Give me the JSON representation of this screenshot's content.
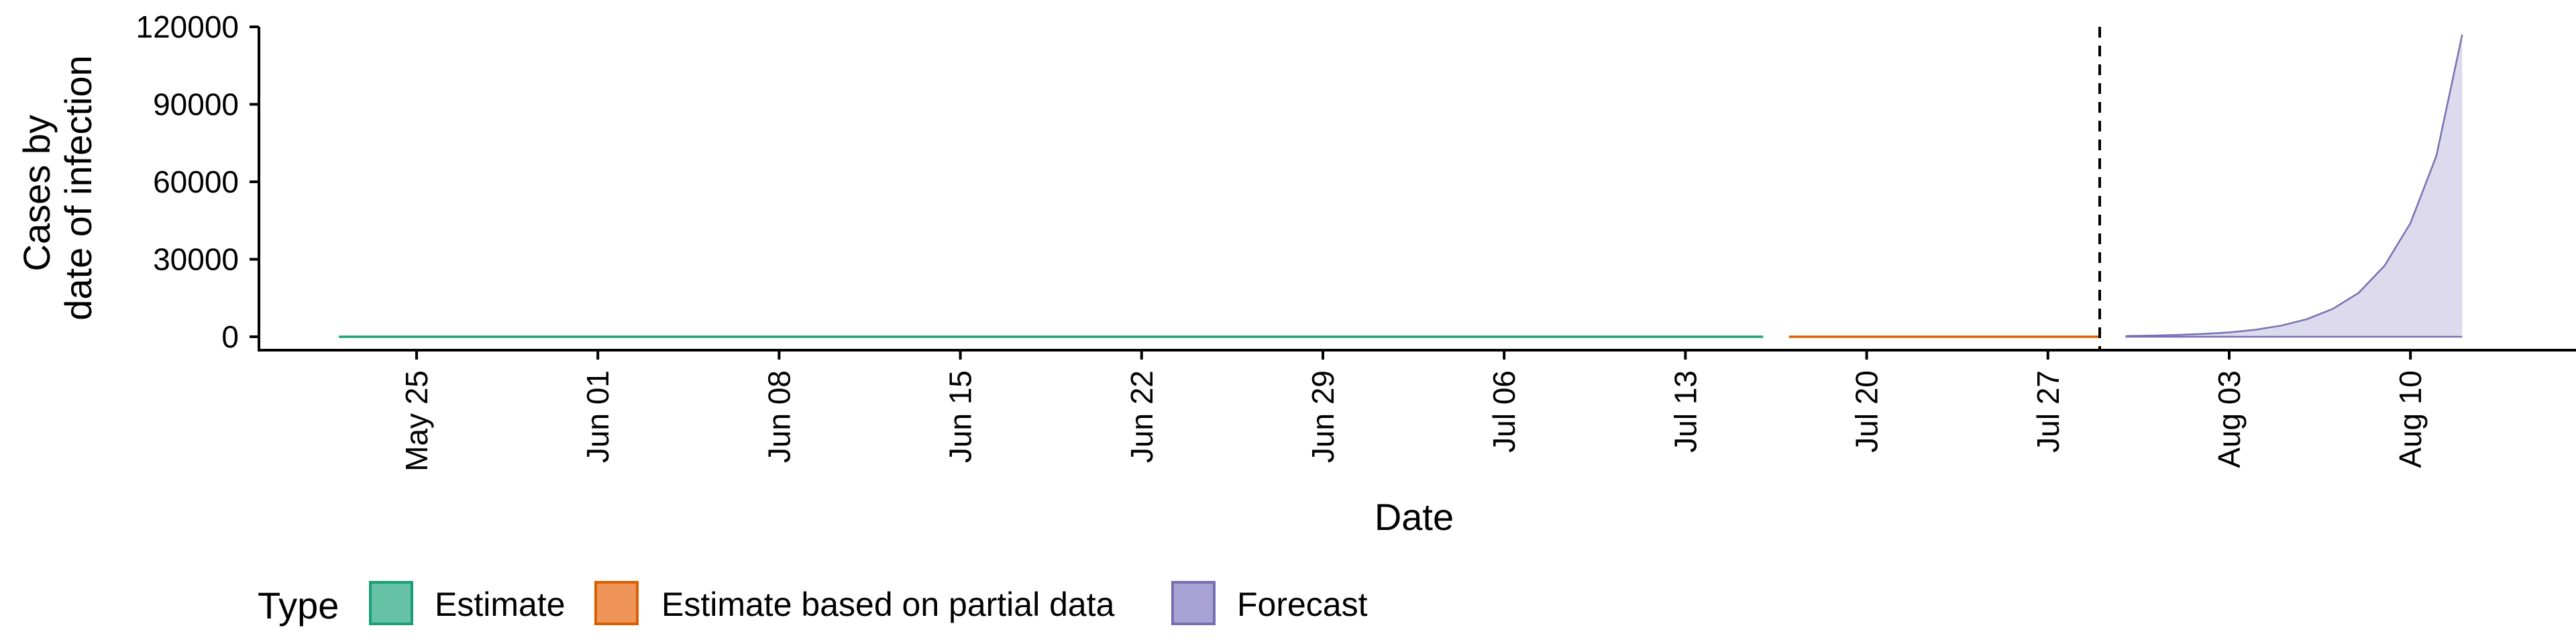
{
  "chart_data": {
    "type": "area",
    "xlabel": "Date",
    "ylabel_lines": [
      "Cases by",
      "date of infection"
    ],
    "x_tick_labels": [
      "May 25",
      "Jun 01",
      "Jun 08",
      "Jun 15",
      "Jun 22",
      "Jun 29",
      "Jul 06",
      "Jul 13",
      "Jul 20",
      "Jul 27",
      "Aug 03",
      "Aug 10"
    ],
    "x_tick_dates": [
      "2020-05-25",
      "2020-06-01",
      "2020-06-08",
      "2020-06-15",
      "2020-06-22",
      "2020-06-29",
      "2020-07-06",
      "2020-07-13",
      "2020-07-20",
      "2020-07-27",
      "2020-08-03",
      "2020-08-10"
    ],
    "x_range": [
      "2020-05-18",
      "2020-08-17"
    ],
    "y_ticks": [
      0,
      30000,
      60000,
      90000,
      120000
    ],
    "y_tick_labels": [
      "0",
      "30000",
      "60000",
      "90000",
      "120000"
    ],
    "ylim": [
      -5000,
      125000
    ],
    "forecast_start_marker": "2020-07-29",
    "legend": {
      "title": "Type",
      "placement": "bottom-left",
      "entries": [
        {
          "label": "Estimate",
          "fill": "#66c2a5",
          "stroke": "#1b9e77"
        },
        {
          "label": "Estimate based on partial data",
          "fill": "#f0955a",
          "stroke": "#d95f02"
        },
        {
          "label": "Forecast",
          "fill": "#a8a3d4",
          "stroke": "#7570b3"
        }
      ]
    },
    "series": [
      {
        "name": "Estimate",
        "color": "#1b9e77",
        "fill": "#66c2a5",
        "x": [
          "2020-05-22",
          "2020-06-01",
          "2020-06-15",
          "2020-06-29",
          "2020-07-13",
          "2020-07-16"
        ],
        "y": [
          0,
          0,
          0,
          0,
          0,
          0
        ]
      },
      {
        "name": "Estimate based on partial data",
        "color": "#d95f02",
        "fill": "#f0955a",
        "x": [
          "2020-07-17",
          "2020-07-22",
          "2020-07-29"
        ],
        "y": [
          0,
          0,
          0
        ]
      },
      {
        "name": "Forecast",
        "color": "#7570b3",
        "fill": "#dcdaec",
        "x": [
          "2020-07-30",
          "2020-07-31",
          "2020-08-01",
          "2020-08-02",
          "2020-08-03",
          "2020-08-04",
          "2020-08-05",
          "2020-08-06",
          "2020-08-07",
          "2020-08-08",
          "2020-08-09",
          "2020-08-10",
          "2020-08-11",
          "2020-08-12"
        ],
        "y": [
          300,
          450,
          700,
          1100,
          1700,
          2700,
          4300,
          6800,
          10800,
          17000,
          27500,
          44000,
          70000,
          117000
        ]
      }
    ]
  }
}
